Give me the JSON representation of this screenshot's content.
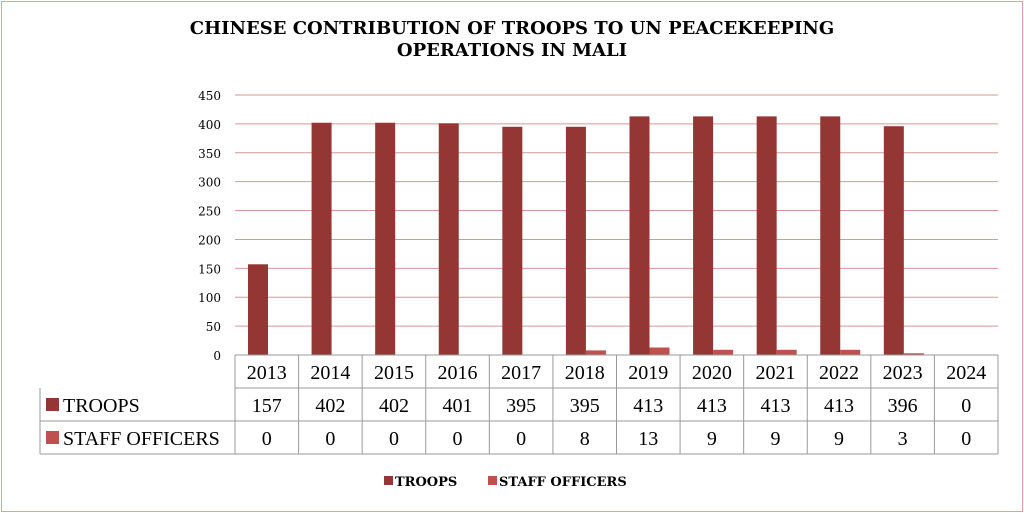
{
  "chart_data": {
    "type": "bar",
    "title_line1": "CHINESE CONTRIBUTION OF TROOPS TO UN PEACEKEEPING",
    "title_line2": "OPERATIONS IN MALI",
    "categories": [
      "2013",
      "2014",
      "2015",
      "2016",
      "2017",
      "2018",
      "2019",
      "2020",
      "2021",
      "2022",
      "2023",
      "2024"
    ],
    "series": [
      {
        "name": "TROOPS",
        "color": "#943634",
        "values": [
          157,
          402,
          402,
          401,
          395,
          395,
          413,
          413,
          413,
          413,
          396,
          0
        ]
      },
      {
        "name": "STAFF OFFICERS",
        "color": "#c0504d",
        "values": [
          0,
          0,
          0,
          0,
          0,
          8,
          13,
          9,
          9,
          9,
          3,
          0
        ]
      }
    ],
    "ylim": [
      0,
      450
    ],
    "yticks": [
      0,
      50,
      100,
      150,
      200,
      250,
      300,
      350,
      400,
      450
    ],
    "grid": true,
    "gridcolor": "#d99694",
    "data_table": true,
    "legend": "bottom"
  }
}
